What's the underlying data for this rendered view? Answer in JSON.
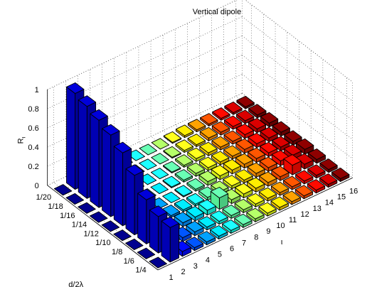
{
  "chart_data": {
    "type": "bar3d",
    "title": "Vertical dipole",
    "zlabel": "R",
    "zlabel_subscript": "ι",
    "xlabel": "ι",
    "ylabel": "d/2λ",
    "x_categories": [
      "1",
      "2",
      "3",
      "4",
      "5",
      "6",
      "7",
      "8",
      "9",
      "10",
      "11",
      "12",
      "13",
      "14",
      "15",
      "16"
    ],
    "y_categories": [
      "1/4",
      "1/6",
      "1/8",
      "1/10",
      "1/12",
      "1/14",
      "1/16",
      "1/18",
      "1/20"
    ],
    "zlim": [
      0,
      1
    ],
    "z_ticks": [
      "0",
      "0.2",
      "0.4",
      "0.6",
      "0.8",
      "1"
    ],
    "grid": true,
    "colormap": "jet",
    "values": [
      [
        0.0,
        0.36,
        0.05,
        0.03,
        0.03,
        0.03,
        0.03,
        0.03,
        0.03,
        0.03,
        0.03,
        0.03,
        0.03,
        0.03,
        0.03,
        0.03
      ],
      [
        0.0,
        0.38,
        0.06,
        0.04,
        0.04,
        0.03,
        0.03,
        0.03,
        0.03,
        0.03,
        0.03,
        0.03,
        0.03,
        0.03,
        0.03,
        0.03
      ],
      [
        0.0,
        0.46,
        0.0,
        0.04,
        0.04,
        0.04,
        0.05,
        0.12,
        0.04,
        0.04,
        0.04,
        0.04,
        0.04,
        0.1,
        0.05,
        0.04
      ],
      [
        0.0,
        0.62,
        0.0,
        0.01,
        0.02,
        0.02,
        0.02,
        0.03,
        0.03,
        0.03,
        0.03,
        0.04,
        0.04,
        0.05,
        0.05,
        0.05
      ],
      [
        0.0,
        0.76,
        0.0,
        0.0,
        0.0,
        0.0,
        0.01,
        0.02,
        0.04,
        0.04,
        0.04,
        0.04,
        0.04,
        0.04,
        0.04,
        0.04
      ],
      [
        0.0,
        0.85,
        0.0,
        0.0,
        0.0,
        0.0,
        0.01,
        0.02,
        0.03,
        0.03,
        0.03,
        0.03,
        0.04,
        0.04,
        0.04,
        0.04
      ],
      [
        0.0,
        0.91,
        0.0,
        0.0,
        0.0,
        0.0,
        0.0,
        0.01,
        0.02,
        0.03,
        0.03,
        0.03,
        0.03,
        0.04,
        0.04,
        0.04
      ],
      [
        0.0,
        0.96,
        0.0,
        0.0,
        0.0,
        0.0,
        0.0,
        0.0,
        0.01,
        0.02,
        0.02,
        0.03,
        0.03,
        0.03,
        0.03,
        0.03
      ],
      [
        0.0,
        1.0,
        0.0,
        0.0,
        0.0,
        0.0,
        0.0,
        0.0,
        0.0,
        0.01,
        0.02,
        0.02,
        0.02,
        0.02,
        0.02,
        0.02
      ]
    ]
  }
}
